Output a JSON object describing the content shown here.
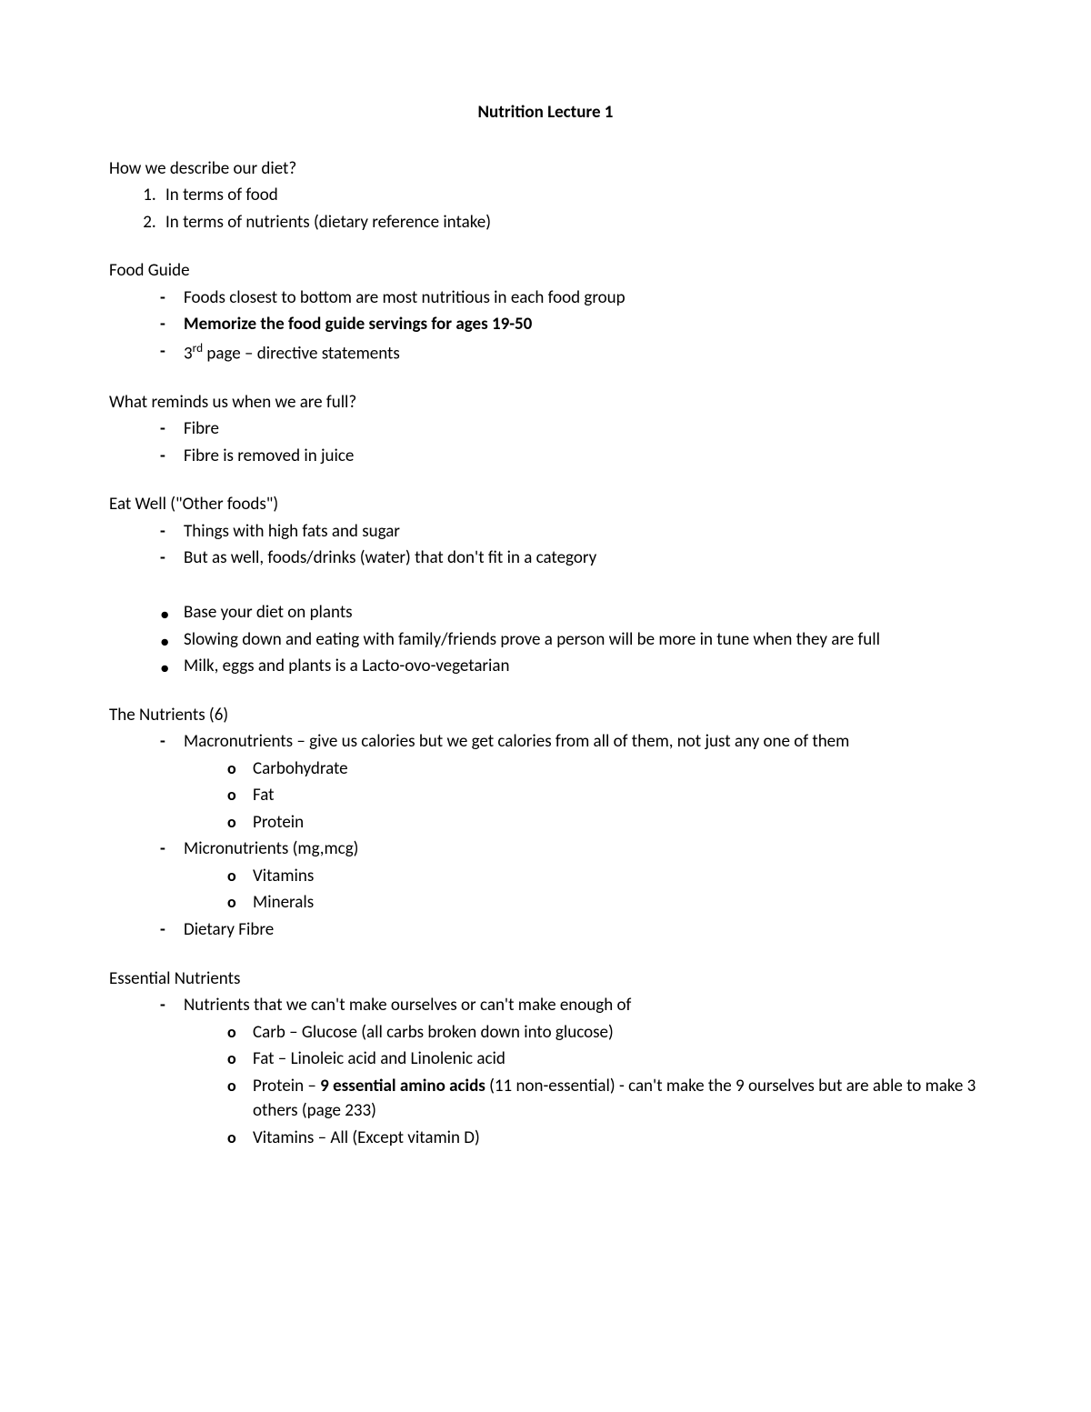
{
  "title": "Nutrition Lecture 1",
  "s1": {
    "head": "How we describe our diet?",
    "items": {
      "a": "In terms of food",
      "b": "In terms of nutrients (dietary reference intake)"
    }
  },
  "s2": {
    "head": "Food Guide",
    "items": {
      "a": "Foods closest to bottom are most nutritious in each food group",
      "b": "Memorize the food guide servings for ages 19-50",
      "c_pre": "3",
      "c_ord": "rd",
      "c_post": " page – directive statements"
    }
  },
  "s3": {
    "head": "What reminds us when we are full?",
    "items": {
      "a": "Fibre",
      "b": "Fibre is removed in juice"
    }
  },
  "s4": {
    "head": "Eat Well (\"Other foods\")",
    "items": {
      "a": "Things with high fats and sugar",
      "b": "But as well, foods/drinks (water) that don't fit in a category"
    },
    "bullets": {
      "a": "Base your diet on plants",
      "b": "Slowing down and eating with family/friends prove a person will be more in tune when they are full",
      "c": "Milk, eggs and plants is a Lacto-ovo-vegetarian"
    }
  },
  "s5": {
    "head": "The Nutrients (6)",
    "macro": "Macronutrients – give us calories but we get calories from all of them, not just any one of them",
    "macro_sub": {
      "a": "Carbohydrate",
      "b": "Fat",
      "c": "Protein"
    },
    "micro": "Micronutrients (mg,mcg)",
    "micro_sub": {
      "a": "Vitamins",
      "b": "Minerals"
    },
    "fibre": "Dietary Fibre"
  },
  "s6": {
    "head": "Essential Nutrients",
    "main": "Nutrients that we can't make ourselves or can't make enough of",
    "sub": {
      "a": "Carb – Glucose (all carbs broken down into glucose)",
      "b": "Fat – Linoleic acid and Linolenic acid",
      "c_pre": "Protein – ",
      "c_bold": "9 essential amino acids",
      "c_post": " (11 non-essential) - can't make the 9 ourselves but are able to make 3 others (page 233)",
      "d": "Vitamins – All (Except vitamin D)"
    }
  }
}
